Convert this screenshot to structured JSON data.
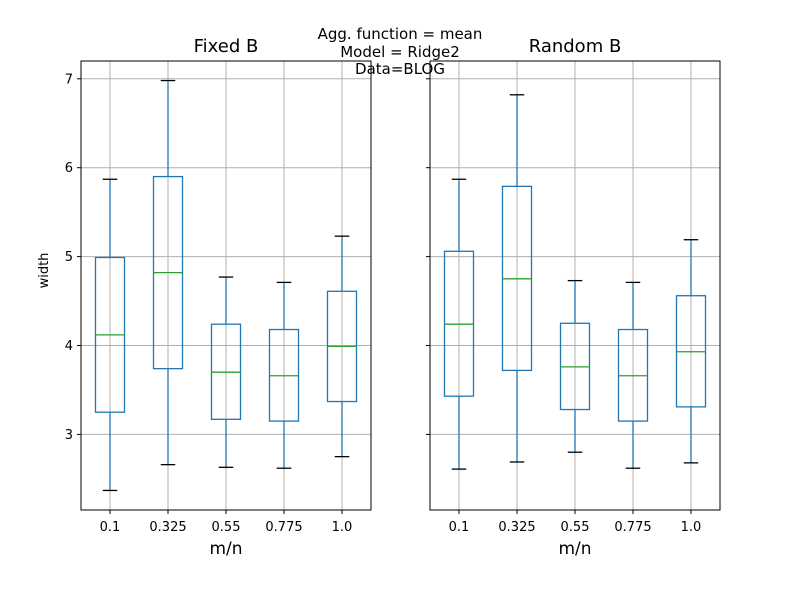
{
  "figure": {
    "suptitle_lines": [
      "Agg. function = mean",
      "Model = Ridge2",
      "Data=BLOG"
    ],
    "ylabel": "width",
    "xlabel": "m/n"
  },
  "chart_data": [
    {
      "type": "box",
      "title": "Fixed B",
      "xlabel": "m/n",
      "ylabel": "width",
      "categories": [
        "0.1",
        "0.325",
        "0.55",
        "0.775",
        "1.0"
      ],
      "ylim": [
        2.15,
        7.2
      ],
      "yticks": [
        3,
        4,
        5,
        6,
        7
      ],
      "grid": true,
      "boxes": [
        {
          "whisker_low": 2.37,
          "q1": 3.25,
          "median": 4.12,
          "q3": 4.99,
          "whisker_high": 5.87
        },
        {
          "whisker_low": 2.66,
          "q1": 3.74,
          "median": 4.82,
          "q3": 5.9,
          "whisker_high": 6.98
        },
        {
          "whisker_low": 2.63,
          "q1": 3.17,
          "median": 3.7,
          "q3": 4.24,
          "whisker_high": 4.77
        },
        {
          "whisker_low": 2.62,
          "q1": 3.15,
          "median": 3.66,
          "q3": 4.18,
          "whisker_high": 4.71
        },
        {
          "whisker_low": 2.75,
          "q1": 3.37,
          "median": 3.99,
          "q3": 4.61,
          "whisker_high": 5.23
        }
      ],
      "colors": {
        "box": "#1f77b4",
        "median": "#2ca02c",
        "cap": "#000000",
        "grid": "#b0b0b0"
      }
    },
    {
      "type": "box",
      "title": "Random B",
      "xlabel": "m/n",
      "ylabel": "",
      "categories": [
        "0.1",
        "0.325",
        "0.55",
        "0.775",
        "1.0"
      ],
      "ylim": [
        2.15,
        7.2
      ],
      "yticks": [
        3,
        4,
        5,
        6,
        7
      ],
      "grid": true,
      "boxes": [
        {
          "whisker_low": 2.61,
          "q1": 3.43,
          "median": 4.24,
          "q3": 5.06,
          "whisker_high": 5.87
        },
        {
          "whisker_low": 2.69,
          "q1": 3.72,
          "median": 4.75,
          "q3": 5.79,
          "whisker_high": 6.82
        },
        {
          "whisker_low": 2.8,
          "q1": 3.28,
          "median": 3.76,
          "q3": 4.25,
          "whisker_high": 4.73
        },
        {
          "whisker_low": 2.62,
          "q1": 3.15,
          "median": 3.66,
          "q3": 4.18,
          "whisker_high": 4.71
        },
        {
          "whisker_low": 2.68,
          "q1": 3.31,
          "median": 3.93,
          "q3": 4.56,
          "whisker_high": 5.19
        }
      ],
      "colors": {
        "box": "#1f77b4",
        "median": "#2ca02c",
        "cap": "#000000",
        "grid": "#b0b0b0"
      }
    }
  ]
}
